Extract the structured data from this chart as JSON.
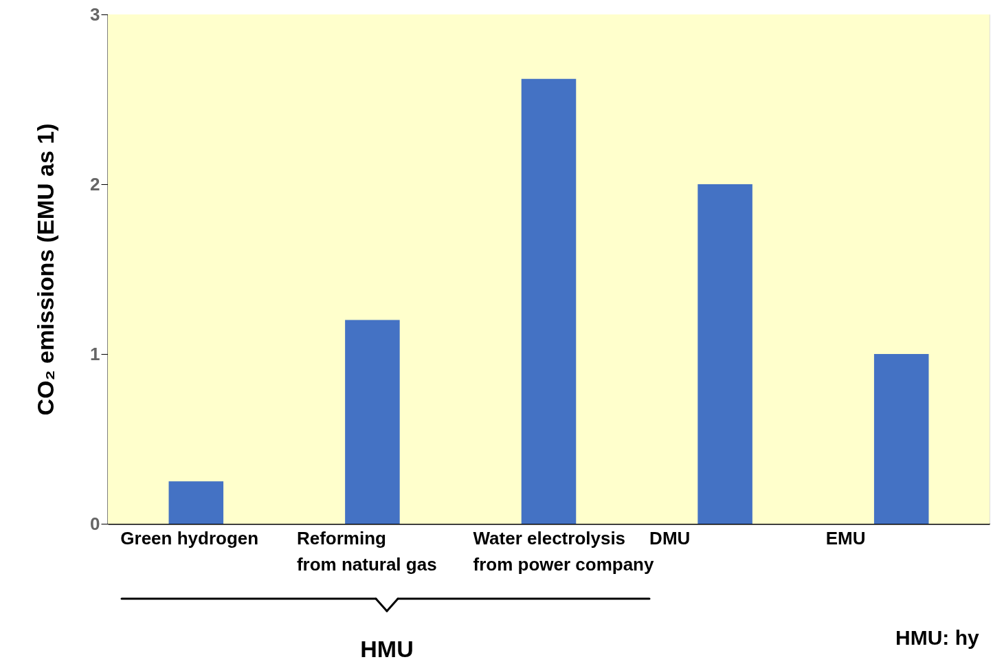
{
  "chart_data": {
    "type": "bar",
    "ylabel": "CO₂ emissions (EMU as 1)",
    "categories": [
      "Green hydrogen",
      "Reforming\nfrom natural gas",
      "Water electrolysis\nfrom power company",
      "DMU",
      "EMU"
    ],
    "values": [
      0.25,
      1.2,
      2.62,
      2.0,
      1.0
    ],
    "color": "#4472c4",
    "ylim": [
      0,
      3
    ],
    "yticks": [
      0,
      1,
      2,
      3
    ],
    "annotations": [
      "HMU",
      "HMU: hy"
    ]
  }
}
